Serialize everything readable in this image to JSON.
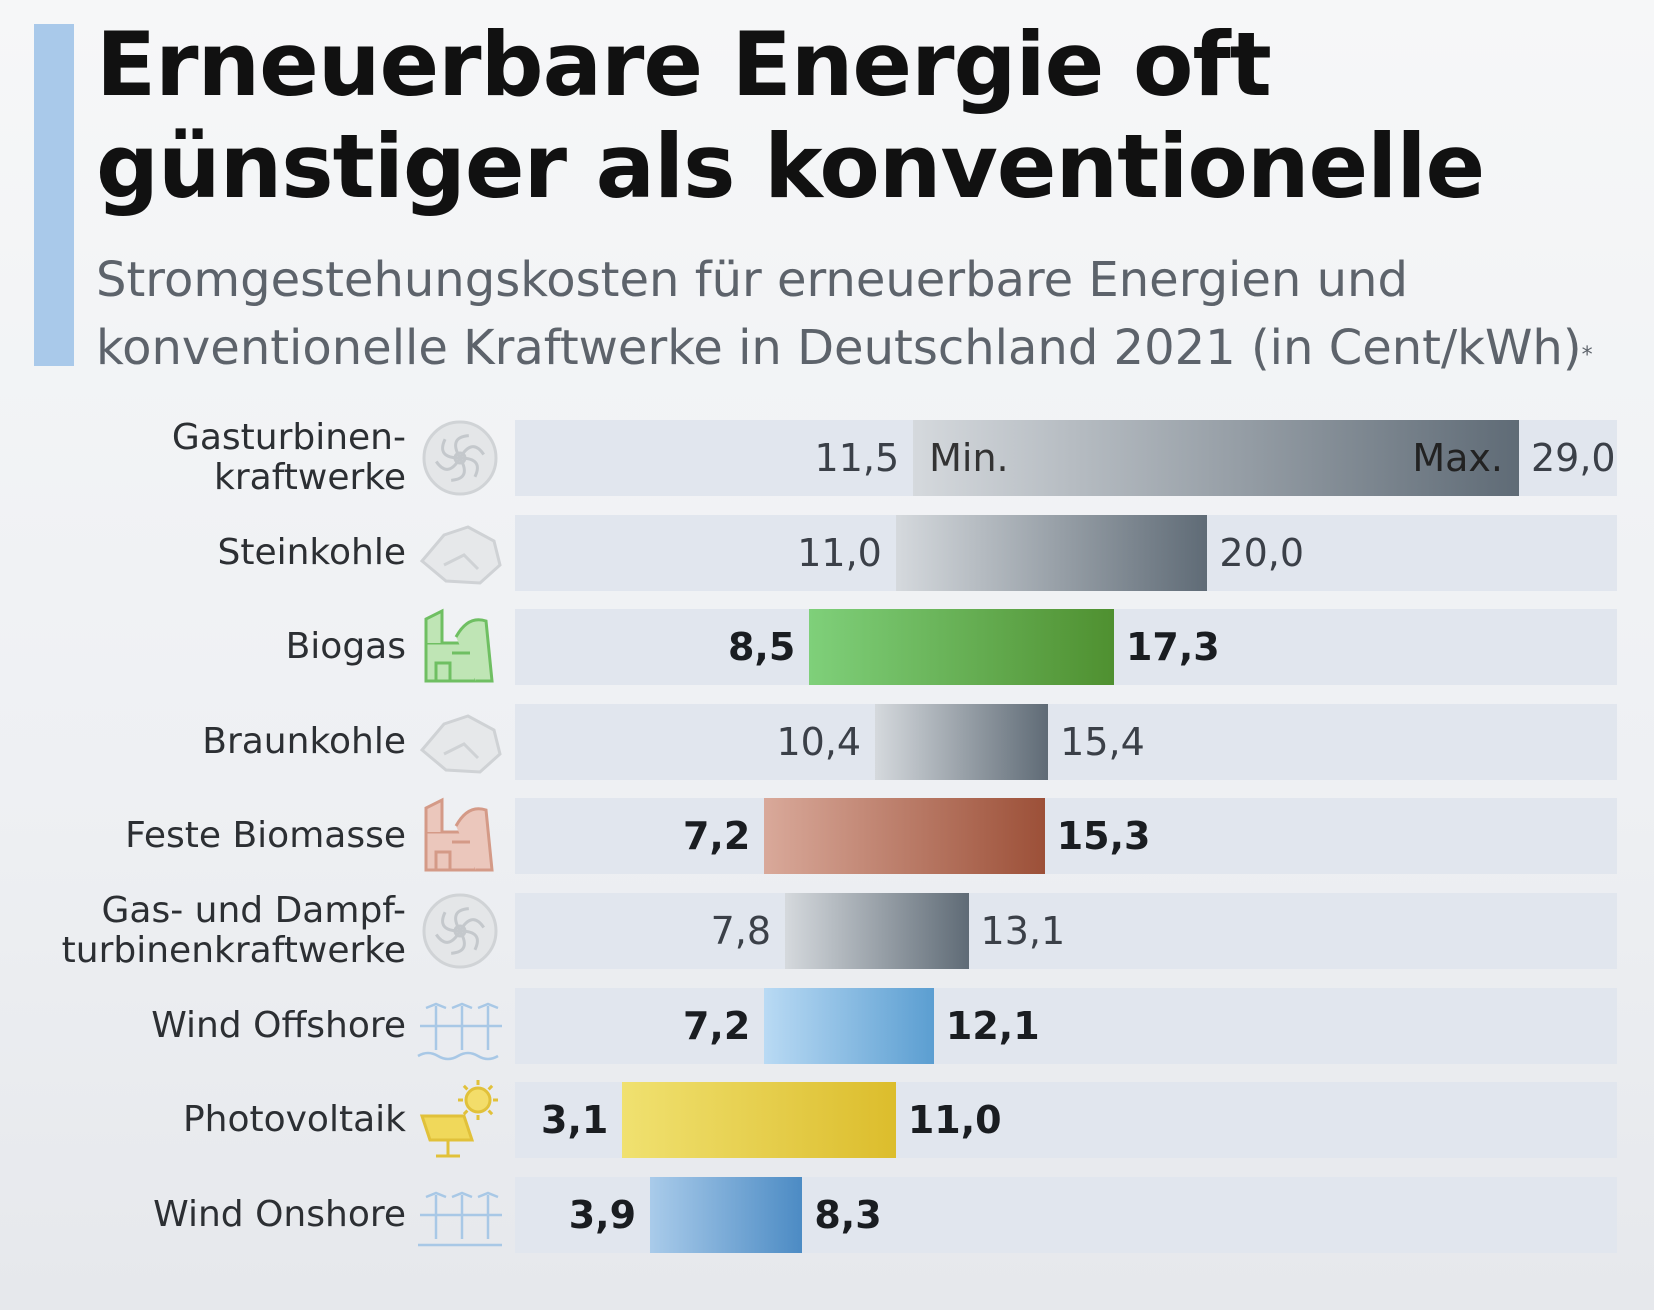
{
  "header": {
    "title": "Erneuerbare Energie oft günstiger als konventionelle",
    "subtitle": "Stromgestehungskosten für erneuerbare Energien und konventionelle Kraftwerke in Deutschland 2021 (in Cent/kWh)",
    "footnote_mark": "*"
  },
  "chart_data": {
    "type": "bar",
    "orientation": "horizontal-range",
    "title": "Erneuerbare Energie oft günstiger als konventionelle",
    "subtitle": "Stromgestehungskosten für erneuerbare Energien und konventionelle Kraftwerke in Deutschland 2021 (in Cent/kWh)",
    "xlim": [
      0,
      29.0
    ],
    "min_label": "Min.",
    "max_label": "Max.",
    "grid": false,
    "categories": [
      "Gasturbinen-\nkraftwerke",
      "Steinkohle",
      "Biogas",
      "Braunkohle",
      "Feste Biomasse",
      "Gas- und Dampf-\nturbinenkraftwerke",
      "Wind Offshore",
      "Photovoltaik",
      "Wind Onshore"
    ],
    "min_values": [
      11.5,
      11.0,
      8.5,
      10.4,
      7.2,
      7.8,
      7.2,
      3.1,
      3.9
    ],
    "max_values": [
      29.0,
      20.0,
      17.3,
      15.4,
      15.3,
      13.1,
      12.1,
      11.0,
      8.3
    ],
    "min_labels": [
      "11,5",
      "11,0",
      "8,5",
      "10,4",
      "7,2",
      "7,8",
      "7,2",
      "3,1",
      "3,9"
    ],
    "max_labels": [
      "29,0",
      "20,0",
      "17,3",
      "15,4",
      "15,3",
      "13,1",
      "12,1",
      "11,0",
      "8,3"
    ],
    "renewable": [
      false,
      false,
      true,
      false,
      true,
      false,
      true,
      true,
      true
    ],
    "colors": [
      [
        "#d5d9dd",
        "#5f6b76"
      ],
      [
        "#d5d9dd",
        "#5f6b76"
      ],
      [
        "#7fd07a",
        "#4f9030"
      ],
      [
        "#d5d9dd",
        "#5f6b76"
      ],
      [
        "#d9a99a",
        "#9c5038"
      ],
      [
        "#d5d9dd",
        "#5f6b76"
      ],
      [
        "#b9daf4",
        "#5b9ed1"
      ],
      [
        "#f0e170",
        "#dcbd2c"
      ],
      [
        "#a9cbea",
        "#4c8bc4"
      ]
    ],
    "icons": [
      "turbine-icon",
      "coal-icon",
      "biogas-plant-icon",
      "coal-icon",
      "biomass-plant-icon",
      "turbine-icon",
      "wind-offshore-icon",
      "solar-panel-icon",
      "wind-onshore-icon"
    ]
  }
}
